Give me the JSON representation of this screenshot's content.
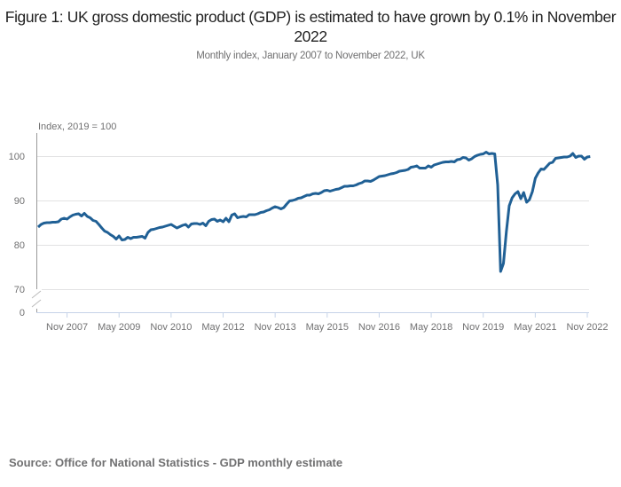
{
  "title": "Figure 1: UK gross domestic product (GDP) is estimated to have grown by 0.1% in November 2022",
  "subtitle": "Monthly index, January 2007 to November 2022, UK",
  "source": "Source: Office for National Statistics - GDP monthly estimate",
  "chart_data": {
    "type": "line",
    "title": "Figure 1: UK gross domestic product (GDP) is estimated to have grown by 0.1% in November 2022",
    "subtitle": "Monthly index, January 2007 to November 2022, UK",
    "ylabel": "Index, 2019 = 100",
    "xlabel": "",
    "x_start": "2007-01",
    "x_end": "2022-11",
    "x_frequency": "monthly",
    "x_tick_labels": [
      "Nov 2007",
      "May 2009",
      "Nov 2010",
      "May 2012",
      "Nov 2013",
      "May 2015",
      "Nov 2016",
      "May 2018",
      "Nov 2019",
      "May 2021",
      "Nov 2022"
    ],
    "y_ticks": [
      0,
      70,
      80,
      90,
      100
    ],
    "y_axis_break": "between 0 and 70",
    "ylim": [
      70,
      105
    ],
    "grid": "horizontal",
    "line_color": "#206095",
    "values": [
      84.0,
      84.6,
      84.9,
      85.0,
      85.0,
      85.1,
      85.1,
      85.2,
      85.8,
      86.0,
      85.8,
      86.3,
      86.7,
      86.9,
      87.0,
      86.5,
      87.1,
      86.4,
      86.1,
      85.5,
      85.3,
      84.6,
      83.8,
      83.1,
      82.8,
      82.3,
      81.9,
      81.3,
      82.0,
      81.1,
      81.2,
      81.7,
      81.4,
      81.7,
      81.7,
      81.8,
      81.9,
      81.5,
      82.8,
      83.4,
      83.5,
      83.7,
      83.9,
      84.0,
      84.2,
      84.4,
      84.6,
      84.2,
      83.8,
      84.1,
      84.4,
      84.6,
      84.0,
      84.7,
      84.8,
      84.8,
      84.6,
      84.9,
      84.3,
      85.3,
      85.7,
      85.8,
      85.3,
      85.6,
      85.2,
      86.0,
      85.2,
      86.7,
      87.0,
      86.1,
      86.3,
      86.4,
      86.3,
      86.8,
      86.8,
      86.8,
      87.0,
      87.3,
      87.4,
      87.7,
      87.9,
      88.3,
      88.6,
      88.4,
      88.1,
      88.4,
      89.2,
      89.9,
      90.0,
      90.2,
      90.5,
      90.6,
      90.9,
      91.2,
      91.2,
      91.5,
      91.6,
      91.5,
      91.8,
      92.2,
      92.3,
      92.1,
      92.3,
      92.5,
      92.6,
      92.9,
      93.2,
      93.2,
      93.3,
      93.3,
      93.5,
      93.8,
      94.0,
      94.4,
      94.4,
      94.3,
      94.6,
      95.0,
      95.4,
      95.5,
      95.6,
      95.8,
      96.0,
      96.1,
      96.3,
      96.6,
      96.7,
      96.8,
      97.0,
      97.5,
      97.6,
      97.8,
      97.3,
      97.3,
      97.3,
      97.8,
      97.5,
      98.0,
      98.2,
      98.4,
      98.6,
      98.7,
      98.7,
      98.8,
      98.7,
      99.2,
      99.3,
      99.7,
      99.6,
      99.1,
      99.4,
      99.9,
      100.2,
      100.4,
      100.5,
      100.9,
      100.5,
      100.6,
      100.5,
      93.5,
      74.0,
      75.8,
      83.0,
      88.8,
      90.6,
      91.5,
      92.0,
      90.4,
      91.8,
      89.6,
      90.2,
      92.0,
      95.0,
      96.2,
      97.1,
      97.0,
      97.7,
      98.4,
      98.6,
      99.5,
      99.6,
      99.7,
      99.8,
      99.8,
      100.0,
      100.6,
      99.7,
      100.0,
      100.0,
      99.3,
      99.8,
      99.9
    ]
  }
}
